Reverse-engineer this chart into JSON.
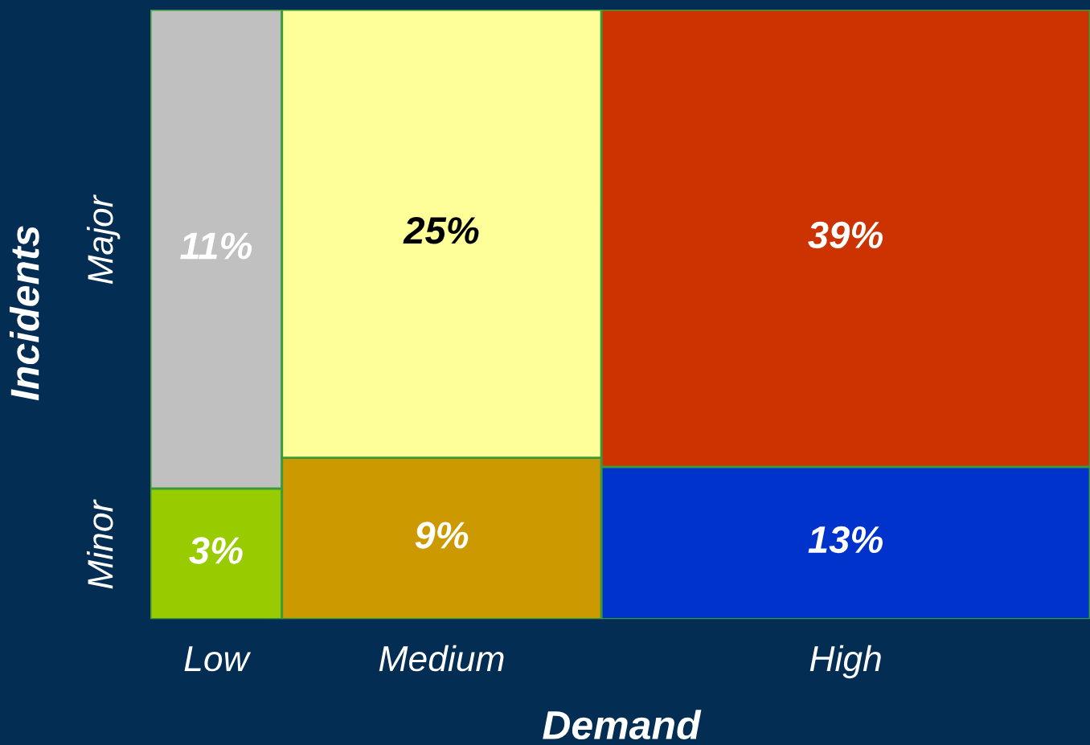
{
  "chart_data": {
    "type": "other",
    "xlabel": "Demand",
    "ylabel": "Incidents",
    "categories": [
      "Low",
      "Medium",
      "High"
    ],
    "series": [
      {
        "name": "Major",
        "colors": [
          "#c0c0c0",
          "#ffff99",
          "#cc3300"
        ],
        "values": [
          11,
          25,
          39
        ],
        "value_labels": [
          "11%",
          "25%",
          "39%"
        ]
      },
      {
        "name": "Minor",
        "colors": [
          "#99cc00",
          "#cc9900",
          "#0033cc"
        ],
        "values": [
          3,
          9,
          13
        ],
        "value_labels": [
          "3%",
          "9%",
          "13%"
        ]
      }
    ]
  }
}
